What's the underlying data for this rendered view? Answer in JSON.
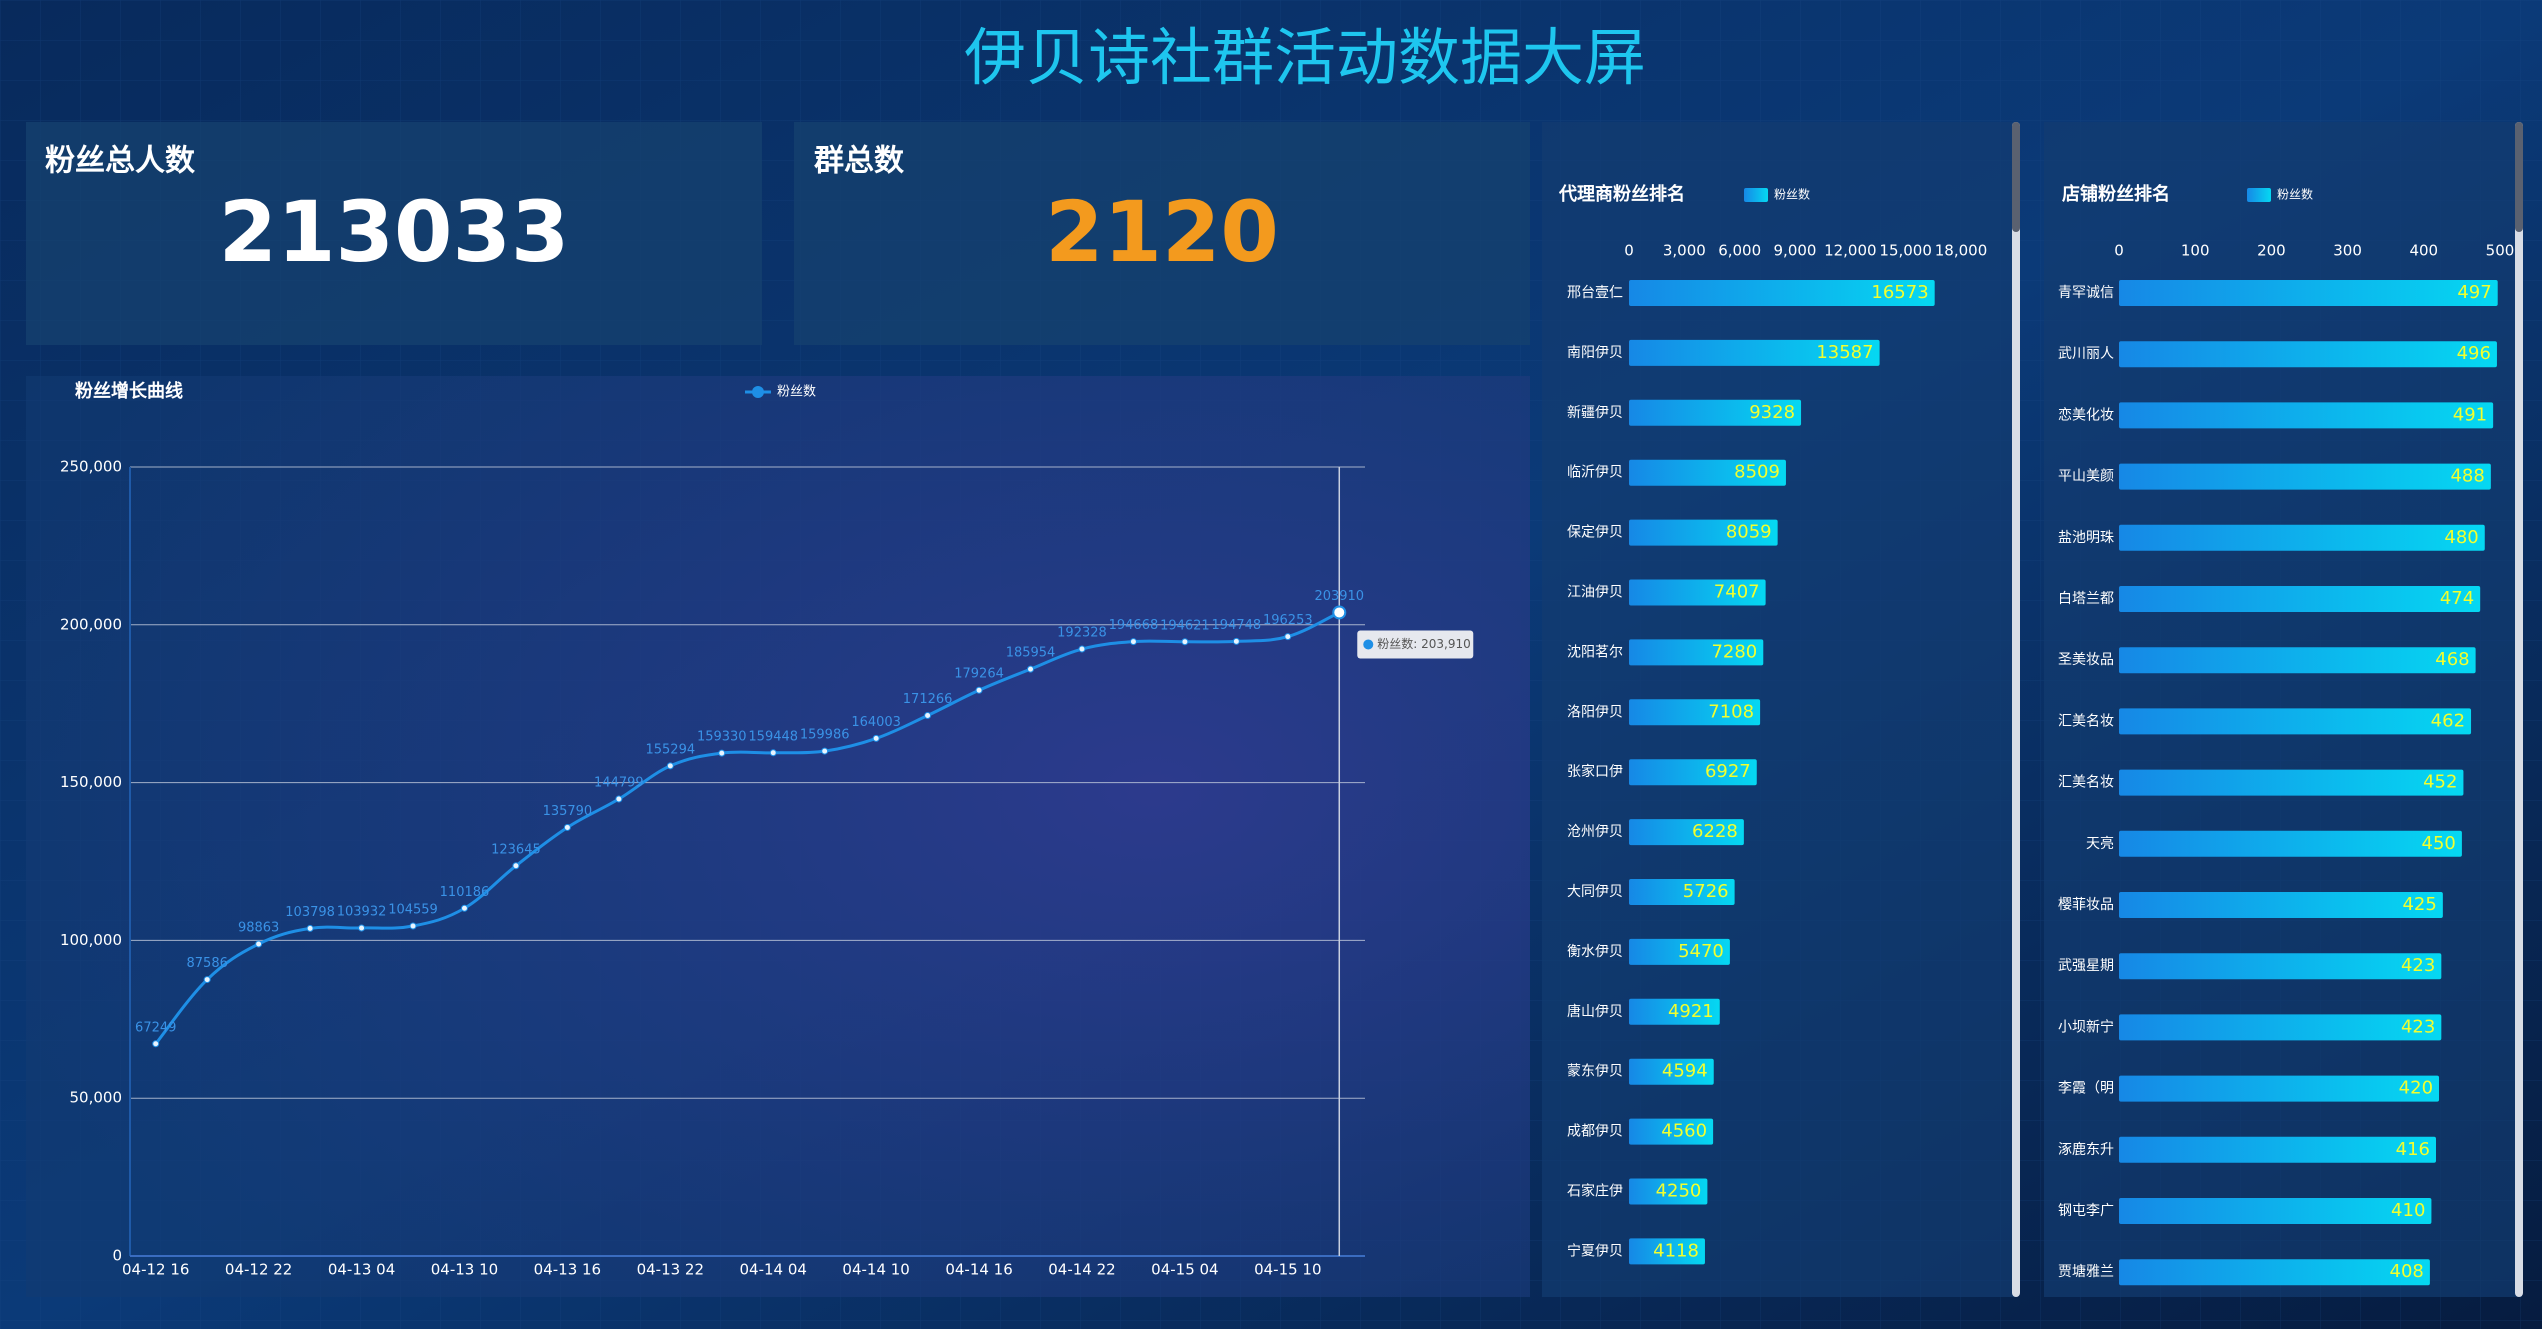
{
  "header": {
    "title": "伊贝诗社群活动数据大屏"
  },
  "kpis": [
    {
      "label": "粉丝总人数",
      "value": 213033,
      "color": "#ffffff"
    },
    {
      "label": "群总数",
      "value": 2120,
      "color": "#f39a1e"
    }
  ],
  "chart_data": [
    {
      "type": "line",
      "title": "粉丝增长曲线",
      "categories": [
        "04-12 16",
        null,
        "04-12 22",
        null,
        "04-13 04",
        null,
        "04-13 10",
        null,
        "04-13 16",
        null,
        "04-13 22",
        null,
        "04-14 04",
        null,
        "04-14 10",
        null,
        "04-14 16",
        null,
        "04-14 22",
        null,
        "04-15 04",
        null,
        "04-15 10",
        null
      ],
      "series": [
        {
          "name": "粉丝数",
          "color": "#1e8fe6",
          "values": [
            67249,
            87586,
            98863,
            103798,
            103932,
            104559,
            110186,
            123645,
            135790,
            144799,
            155294,
            159330,
            159448,
            159986,
            164003,
            171266,
            179264,
            185954,
            192328,
            194668,
            194621,
            194748,
            196253,
            203910
          ]
        }
      ],
      "ylim": [
        0,
        250000
      ],
      "yticks": [
        0,
        {
          "value": 50000,
          "label": "50,000"
        },
        {
          "value": 100000,
          "label": "100,000"
        },
        {
          "value": 150000,
          "label": "150,000"
        },
        {
          "value": 200000,
          "label": "200,000"
        },
        {
          "value": 250000,
          "label": "250,000"
        }
      ],
      "grid": true,
      "tooltip": "粉丝数: 203,910"
    },
    {
      "type": "hbar",
      "title": "代理商粉丝排名",
      "categories": [
        "邢台壹仁",
        "南阳伊贝",
        "新疆伊贝",
        "临沂伊贝",
        "保定伊贝",
        "江油伊贝",
        "沈阳茗尔",
        "洛阳伊贝",
        "张家口伊",
        "沧州伊贝",
        "大同伊贝",
        "衡水伊贝",
        "唐山伊贝",
        "蒙东伊贝",
        "成都伊贝",
        "石家庄伊",
        "宁夏伊贝"
      ],
      "series": [
        {
          "name": "粉丝数",
          "gradient": [
            "#1688e6",
            "#05d8f2"
          ],
          "values": [
            16573,
            13587,
            9328,
            8509,
            8059,
            7407,
            7280,
            7108,
            6927,
            6228,
            5726,
            5470,
            4921,
            4594,
            4560,
            4250,
            4118
          ]
        }
      ],
      "label_color": "#f2ff2e",
      "xlim": [
        0,
        18000
      ],
      "xticks": [
        0,
        {
          "value": 3000,
          "label": "3,000"
        },
        {
          "value": 6000,
          "label": "6,000"
        },
        {
          "value": 9000,
          "label": "9,000"
        },
        {
          "value": 12000,
          "label": "12,000"
        },
        {
          "value": 15000,
          "label": "15,000"
        },
        {
          "value": 18000,
          "label": "18,000"
        }
      ]
    },
    {
      "type": "hbar",
      "title": "店铺粉丝排名",
      "categories": [
        "青罕诚信",
        "武川丽人",
        "恋美化妆",
        "平山美颜",
        "盐池明珠",
        "白塔兰都",
        "圣美妆品",
        "汇美名妆",
        "汇美名妆",
        "天亮",
        "樱菲妆品",
        "武强星期",
        "小坝新宁",
        "李霞（明",
        "涿鹿东升",
        "钢屯李广",
        "贾塘雅兰"
      ],
      "series": [
        {
          "name": "粉丝数",
          "gradient": [
            "#1688e6",
            "#05d8f2"
          ],
          "values": [
            497,
            496,
            491,
            488,
            480,
            474,
            468,
            462,
            452,
            450,
            425,
            423,
            423,
            420,
            416,
            410,
            408
          ]
        }
      ],
      "label_color": "#f2ff2e",
      "xlim": [
        0,
        500
      ],
      "xticks": [
        0,
        100,
        200,
        300,
        400,
        500
      ]
    }
  ]
}
